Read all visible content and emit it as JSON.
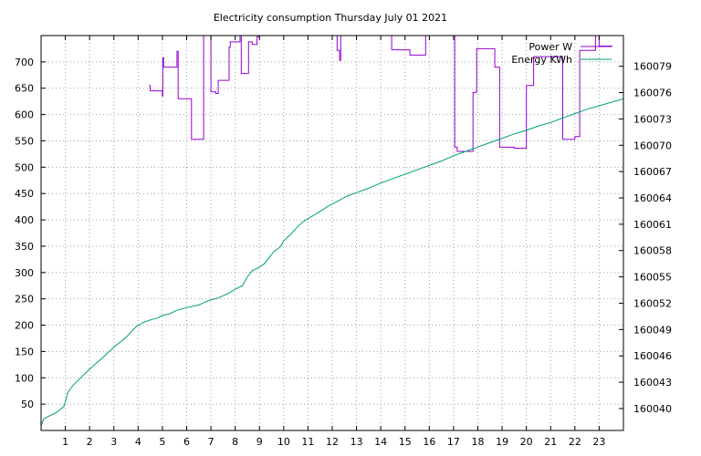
{
  "chart_data": {
    "type": "line",
    "title": "Electricity consumption Thursday July 01 2021",
    "x": {
      "range": [
        0,
        24
      ],
      "ticks": [
        1,
        2,
        3,
        4,
        5,
        6,
        7,
        8,
        9,
        10,
        11,
        12,
        13,
        14,
        15,
        16,
        17,
        18,
        19,
        20,
        21,
        22,
        23
      ],
      "grid": true
    },
    "y_left": {
      "range": [
        0,
        750
      ],
      "ticks": [
        50,
        100,
        150,
        200,
        250,
        300,
        350,
        400,
        450,
        500,
        550,
        600,
        650,
        700
      ],
      "grid": true
    },
    "y_right": {
      "range": [
        160037.5,
        160082.5
      ],
      "ticks": [
        160040,
        160043,
        160046,
        160049,
        160052,
        160055,
        160058,
        160061,
        160064,
        160067,
        160070,
        160073,
        160076,
        160079
      ]
    },
    "legend": {
      "position": "top-right"
    },
    "series": [
      {
        "name": "Power W",
        "axis": "left",
        "color": "#9400d3",
        "step": true,
        "x": [
          4.45,
          4.5,
          4.55,
          4.75,
          5.0,
          5.02,
          5.05,
          5.1,
          5.2,
          5.6,
          5.65,
          6.05,
          6.2,
          6.6,
          6.7,
          7.0,
          7.15,
          7.2,
          7.3,
          7.35,
          7.75,
          7.8,
          8.2,
          8.25,
          8.55,
          8.6,
          8.7,
          8.8,
          8.9,
          9.0,
          9.05,
          12.2,
          12.3,
          12.35,
          14.45,
          14.5,
          15.2,
          15.3,
          15.85,
          17.05,
          17.15,
          17.75,
          17.8,
          17.95,
          18.65,
          18.7,
          18.9,
          19.3,
          19.5,
          19.9,
          20.0,
          20.3,
          21.5,
          21.55,
          22.0,
          22.2,
          22.45,
          22.85,
          23.0,
          23.55
        ],
        "y": [
          655,
          645,
          645,
          645,
          635,
          708,
          690,
          690,
          690,
          720,
          630,
          630,
          553,
          553,
          770,
          643,
          643,
          640,
          665,
          665,
          728,
          738,
          768,
          678,
          738,
          738,
          733,
          733,
          748,
          755,
          755,
          722,
          703,
          770,
          723,
          723,
          713,
          713,
          765,
          538,
          530,
          530,
          642,
          725,
          725,
          690,
          538,
          538,
          536,
          536,
          655,
          710,
          553,
          553,
          558,
          722,
          722,
          755,
          730,
          730
        ]
      },
      {
        "name": "Energy KWh",
        "axis": "right",
        "color": "#009e73",
        "step": false,
        "x": [
          0.0,
          0.1,
          0.3,
          0.6,
          0.8,
          0.95,
          1.1,
          1.3,
          1.6,
          2.0,
          2.5,
          3.0,
          3.5,
          3.9,
          4.2,
          4.5,
          4.8,
          5.0,
          5.3,
          5.6,
          6.0,
          6.5,
          6.9,
          7.3,
          7.7,
          8.0,
          8.3,
          8.5,
          8.7,
          9.0,
          9.2,
          9.4,
          9.6,
          9.85,
          10.0,
          10.3,
          10.6,
          10.8,
          11.1,
          11.4,
          11.8,
          12.2,
          12.6,
          13.0,
          13.5,
          14.0,
          14.5,
          15.0,
          15.5,
          16.0,
          16.5,
          17.0,
          17.5,
          18.0,
          18.5,
          19.0,
          19.5,
          20.0,
          20.5,
          21.0,
          21.5,
          22.0,
          22.5,
          23.0,
          23.5,
          24.0
        ],
        "y": [
          160038.0,
          160038.8,
          160039.1,
          160039.5,
          160039.9,
          160040.3,
          160041.8,
          160042.6,
          160043.4,
          160044.5,
          160045.7,
          160047.0,
          160048.1,
          160049.3,
          160049.8,
          160050.1,
          160050.3,
          160050.6,
          160050.8,
          160051.2,
          160051.5,
          160051.8,
          160052.3,
          160052.6,
          160053.1,
          160053.6,
          160054.0,
          160055.0,
          160055.7,
          160056.1,
          160056.5,
          160057.2,
          160057.9,
          160058.4,
          160059.1,
          160059.9,
          160060.8,
          160061.3,
          160061.8,
          160062.3,
          160063.0,
          160063.6,
          160064.2,
          160064.6,
          160065.1,
          160065.7,
          160066.2,
          160066.7,
          160067.2,
          160067.7,
          160068.2,
          160068.8,
          160069.3,
          160069.8,
          160070.3,
          160070.8,
          160071.3,
          160071.7,
          160072.2,
          160072.6,
          160073.1,
          160073.6,
          160074.1,
          160074.5,
          160074.9,
          160075.3
        ]
      }
    ]
  }
}
